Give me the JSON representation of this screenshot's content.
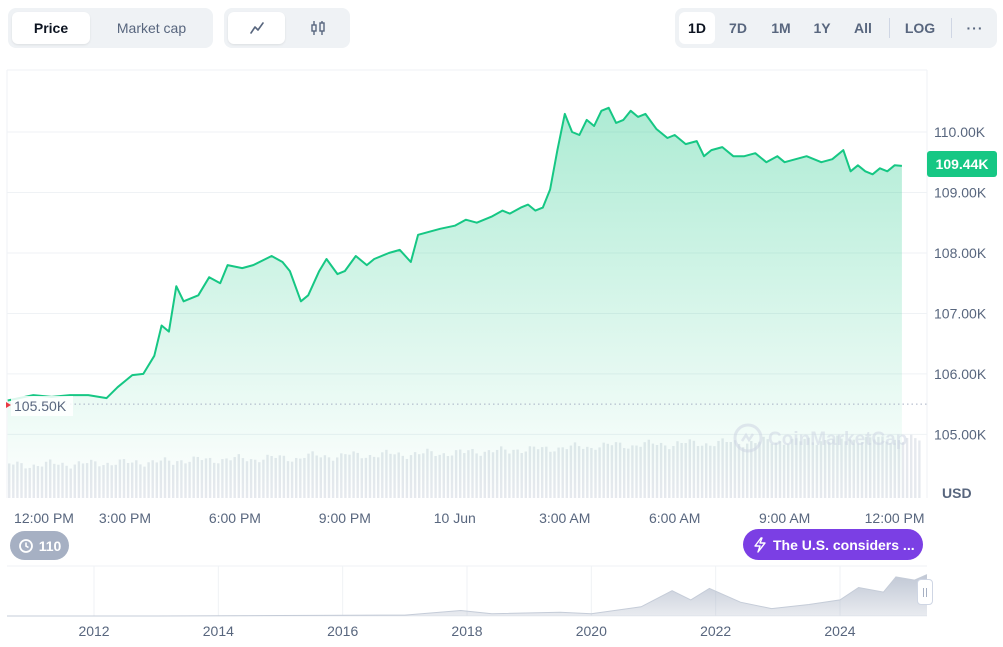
{
  "tabs": {
    "price_label": "Price",
    "market_cap_label": "Market cap",
    "line_icon": "line-chart-icon",
    "candle_icon": "candlestick-icon"
  },
  "ranges": [
    "1D",
    "7D",
    "1M",
    "1Y",
    "All"
  ],
  "active_range": "1D",
  "log_label": "LOG",
  "more_label": "···",
  "current_price_label": "109.44K",
  "open_price_label": "105.50K",
  "currency_label": "USD",
  "watermark": "CoinMarketCap",
  "history_badge": "110",
  "news_badge": "The U.S. considers ...",
  "colors": {
    "up": "#16c784",
    "news": "#7b3fe4",
    "badge": "#a6b0c3"
  },
  "chart_data": {
    "type": "area",
    "y_ticks": [
      "105.00K",
      "106.00K",
      "107.00K",
      "108.00K",
      "109.00K",
      "110.00K"
    ],
    "ylim": [
      104500,
      110900
    ],
    "x_ticks": [
      "12:00 PM",
      "3:00 PM",
      "6:00 PM",
      "9:00 PM",
      "10 Jun",
      "3:00 AM",
      "6:00 AM",
      "9:00 AM",
      "12:00 PM"
    ],
    "x_hours": [
      0,
      3,
      6,
      9,
      12,
      15,
      18,
      21,
      24
    ],
    "open_reference": 105500,
    "last_value": 109440,
    "series": [
      {
        "values": [
          [
            -0.2,
            105560
          ],
          [
            0.5,
            105650
          ],
          [
            1.0,
            105620
          ],
          [
            1.5,
            105650
          ],
          [
            2.0,
            105650
          ],
          [
            2.5,
            105600
          ],
          [
            2.8,
            105780
          ],
          [
            3.2,
            105980
          ],
          [
            3.5,
            106000
          ],
          [
            3.8,
            106300
          ],
          [
            4.0,
            106800
          ],
          [
            4.2,
            106700
          ],
          [
            4.4,
            107450
          ],
          [
            4.6,
            107200
          ],
          [
            5.0,
            107300
          ],
          [
            5.3,
            107600
          ],
          [
            5.6,
            107500
          ],
          [
            5.8,
            107800
          ],
          [
            6.2,
            107750
          ],
          [
            6.5,
            107800
          ],
          [
            7.0,
            107950
          ],
          [
            7.3,
            107850
          ],
          [
            7.5,
            107700
          ],
          [
            7.8,
            107200
          ],
          [
            8.0,
            107300
          ],
          [
            8.3,
            107700
          ],
          [
            8.5,
            107900
          ],
          [
            8.8,
            107650
          ],
          [
            9.0,
            107700
          ],
          [
            9.3,
            107950
          ],
          [
            9.6,
            107800
          ],
          [
            9.8,
            107900
          ],
          [
            10.2,
            108000
          ],
          [
            10.5,
            108050
          ],
          [
            10.8,
            107850
          ],
          [
            11.0,
            108300
          ],
          [
            11.3,
            108350
          ],
          [
            11.6,
            108400
          ],
          [
            12.0,
            108450
          ],
          [
            12.3,
            108550
          ],
          [
            12.6,
            108500
          ],
          [
            13.0,
            108600
          ],
          [
            13.3,
            108700
          ],
          [
            13.5,
            108650
          ],
          [
            13.8,
            108750
          ],
          [
            14.0,
            108800
          ],
          [
            14.2,
            108700
          ],
          [
            14.4,
            108750
          ],
          [
            14.6,
            109050
          ],
          [
            14.8,
            109700
          ],
          [
            15.0,
            110300
          ],
          [
            15.2,
            110000
          ],
          [
            15.4,
            109950
          ],
          [
            15.6,
            110200
          ],
          [
            15.8,
            110100
          ],
          [
            16.0,
            110350
          ],
          [
            16.2,
            110400
          ],
          [
            16.4,
            110150
          ],
          [
            16.6,
            110200
          ],
          [
            16.8,
            110350
          ],
          [
            17.0,
            110250
          ],
          [
            17.2,
            110300
          ],
          [
            17.5,
            110050
          ],
          [
            17.8,
            109900
          ],
          [
            18.0,
            109950
          ],
          [
            18.3,
            109800
          ],
          [
            18.6,
            109850
          ],
          [
            18.8,
            109600
          ],
          [
            19.0,
            109700
          ],
          [
            19.3,
            109750
          ],
          [
            19.6,
            109600
          ],
          [
            19.9,
            109600
          ],
          [
            20.2,
            109650
          ],
          [
            20.5,
            109500
          ],
          [
            20.8,
            109600
          ],
          [
            21.0,
            109500
          ],
          [
            21.3,
            109550
          ],
          [
            21.6,
            109600
          ],
          [
            22.0,
            109500
          ],
          [
            22.3,
            109550
          ],
          [
            22.6,
            109700
          ],
          [
            22.8,
            109350
          ],
          [
            23.0,
            109450
          ],
          [
            23.2,
            109350
          ],
          [
            23.4,
            109300
          ],
          [
            23.6,
            109400
          ],
          [
            23.8,
            109350
          ],
          [
            24.0,
            109450
          ],
          [
            24.2,
            109440
          ]
        ]
      }
    ],
    "volume": {
      "type": "bar",
      "relative_values": [
        0.34,
        0.35,
        0.36,
        0.37,
        0.39,
        0.4,
        0.41,
        0.43,
        0.44,
        0.45,
        0.46,
        0.48,
        0.5,
        0.52,
        0.54,
        0.55,
        0.56,
        0.57,
        0.58,
        0.59,
        0.6,
        0.6
      ]
    },
    "overview": {
      "type": "area",
      "x_ticks": [
        "2012",
        "2014",
        "2016",
        "2018",
        "2020",
        "2022",
        "2024"
      ],
      "x_years": [
        2012,
        2014,
        2016,
        2018,
        2020,
        2022,
        2024
      ],
      "xlim": [
        2010.6,
        2025.4
      ],
      "relative_values": [
        [
          2010.6,
          0.0
        ],
        [
          2013.0,
          0.0
        ],
        [
          2015.0,
          0.01
        ],
        [
          2017.0,
          0.02
        ],
        [
          2017.9,
          0.12
        ],
        [
          2018.4,
          0.05
        ],
        [
          2019.5,
          0.08
        ],
        [
          2020.0,
          0.05
        ],
        [
          2020.8,
          0.2
        ],
        [
          2021.3,
          0.55
        ],
        [
          2021.6,
          0.35
        ],
        [
          2021.9,
          0.6
        ],
        [
          2022.4,
          0.3
        ],
        [
          2022.9,
          0.16
        ],
        [
          2023.5,
          0.25
        ],
        [
          2024.0,
          0.35
        ],
        [
          2024.3,
          0.62
        ],
        [
          2024.7,
          0.52
        ],
        [
          2024.9,
          0.85
        ],
        [
          2025.2,
          0.78
        ],
        [
          2025.4,
          0.9
        ]
      ]
    }
  }
}
